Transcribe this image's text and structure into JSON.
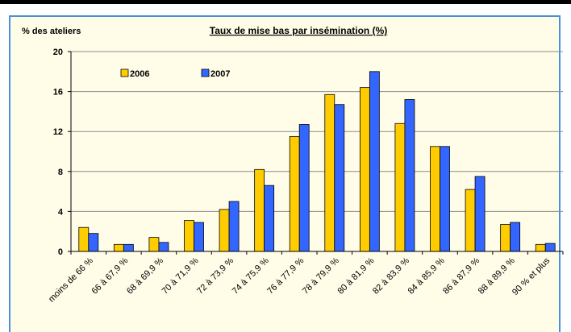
{
  "chart_data": {
    "type": "bar",
    "title": "Taux de mise bas par insémination (%)",
    "ylabel": "% des ateliers",
    "xlabel": "",
    "ylim": [
      0,
      20
    ],
    "yticks": [
      0,
      4,
      8,
      12,
      16,
      20
    ],
    "grid": true,
    "legend": "top-left",
    "categories": [
      "moins de 66 %",
      "66 à 67,9 %",
      "68 à 69,9 %",
      "70 à 71,9 %",
      "72 à 73,9 %",
      "74 à 75,9 %",
      "76 à 77,9 %",
      "78 à 79,9 %",
      "80 à 81,9 %",
      "82 à 83,9 %",
      "84 à 85,9 %",
      "86 à 87,9 %",
      "88 à 89,9 %",
      "90 % et plus"
    ],
    "series": [
      {
        "name": "2006",
        "color": "#ffcc00",
        "values": [
          2.4,
          0.7,
          1.4,
          3.1,
          4.2,
          8.2,
          11.5,
          15.7,
          16.4,
          12.8,
          10.5,
          6.2,
          2.7,
          0.7
        ]
      },
      {
        "name": "2007",
        "color": "#3366ff",
        "values": [
          1.8,
          0.7,
          0.9,
          2.9,
          5.0,
          6.6,
          12.7,
          14.7,
          18.0,
          15.2,
          10.5,
          7.5,
          2.9,
          0.8
        ]
      }
    ]
  }
}
